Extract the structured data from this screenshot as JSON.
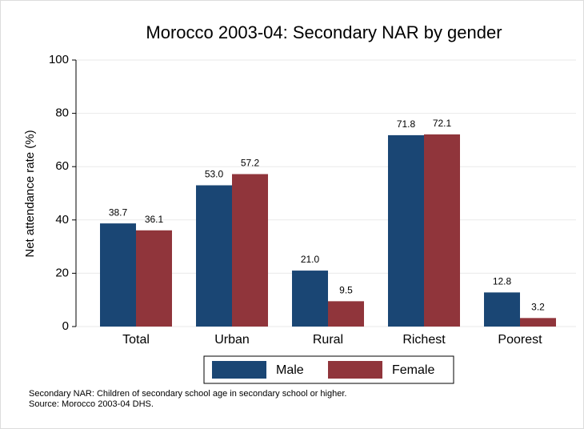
{
  "chart_data": {
    "type": "bar",
    "title": "Morocco 2003-04: Secondary NAR by gender",
    "y_label": "Net attendance rate (%)",
    "categories": [
      "Total",
      "Urban",
      "Rural",
      "Richest",
      "Poorest"
    ],
    "series": [
      {
        "name": "Male",
        "color": "#1a4674",
        "values": [
          38.7,
          53.0,
          21.0,
          71.8,
          12.8
        ],
        "value_labels": [
          "38.7",
          "53.0",
          "21.0",
          "71.8",
          "12.8"
        ]
      },
      {
        "name": "Female",
        "color": "#90353b",
        "values": [
          36.1,
          57.2,
          9.5,
          72.1,
          3.2
        ],
        "value_labels": [
          "36.1",
          "57.2",
          "9.5",
          "72.1",
          "3.2"
        ]
      }
    ],
    "ylim": [
      0,
      100
    ],
    "yticks": [
      0,
      20,
      40,
      60,
      80,
      100
    ],
    "grid": true,
    "notes": [
      "Secondary NAR: Children of secondary school age in secondary school or higher.",
      "Source: Morocco 2003-04 DHS."
    ]
  }
}
